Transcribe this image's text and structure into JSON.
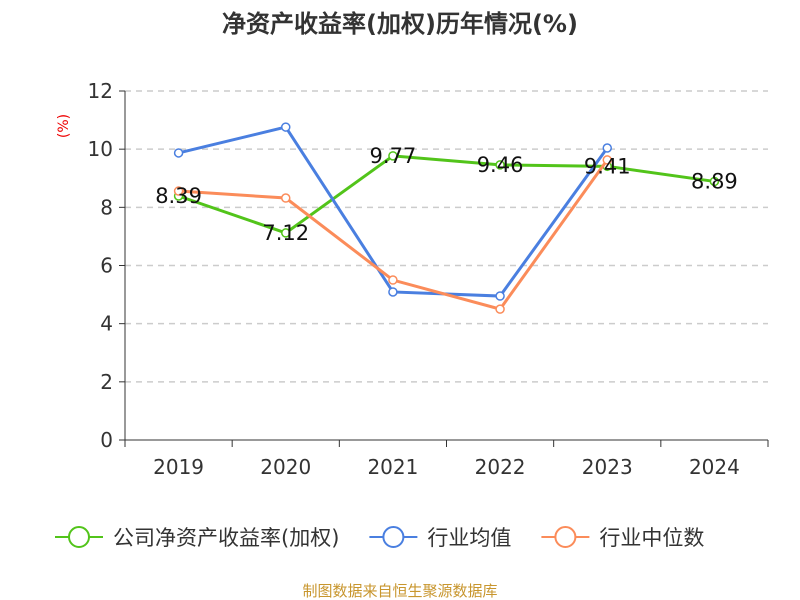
{
  "chart_data": {
    "type": "line",
    "title": "净资产收益率(加权)历年情况(%)",
    "ylabel": "(%)",
    "categories": [
      "2019",
      "2020",
      "2021",
      "2022",
      "2023",
      "2024"
    ],
    "ylim": [
      0,
      12
    ],
    "yticks": [
      0,
      2,
      4,
      6,
      8,
      10,
      12
    ],
    "grid": true,
    "legend_position": "bottom",
    "series": [
      {
        "name": "公司净资产收益率(加权)",
        "color": "#52c41a",
        "values": [
          8.39,
          7.12,
          9.77,
          9.46,
          9.41,
          8.89
        ],
        "labels": [
          "8.39",
          "7.12",
          "9.77",
          "9.46",
          "9.41",
          "8.89"
        ]
      },
      {
        "name": "行业均值",
        "color": "#4a7fe0",
        "values": [
          9.87,
          10.76,
          5.09,
          4.95,
          10.04,
          null
        ]
      },
      {
        "name": "行业中位数",
        "color": "#fb8c5a",
        "values": [
          8.56,
          8.32,
          5.5,
          4.5,
          9.63,
          null
        ]
      }
    ]
  },
  "source": "制图数据来自恒生聚源数据库"
}
